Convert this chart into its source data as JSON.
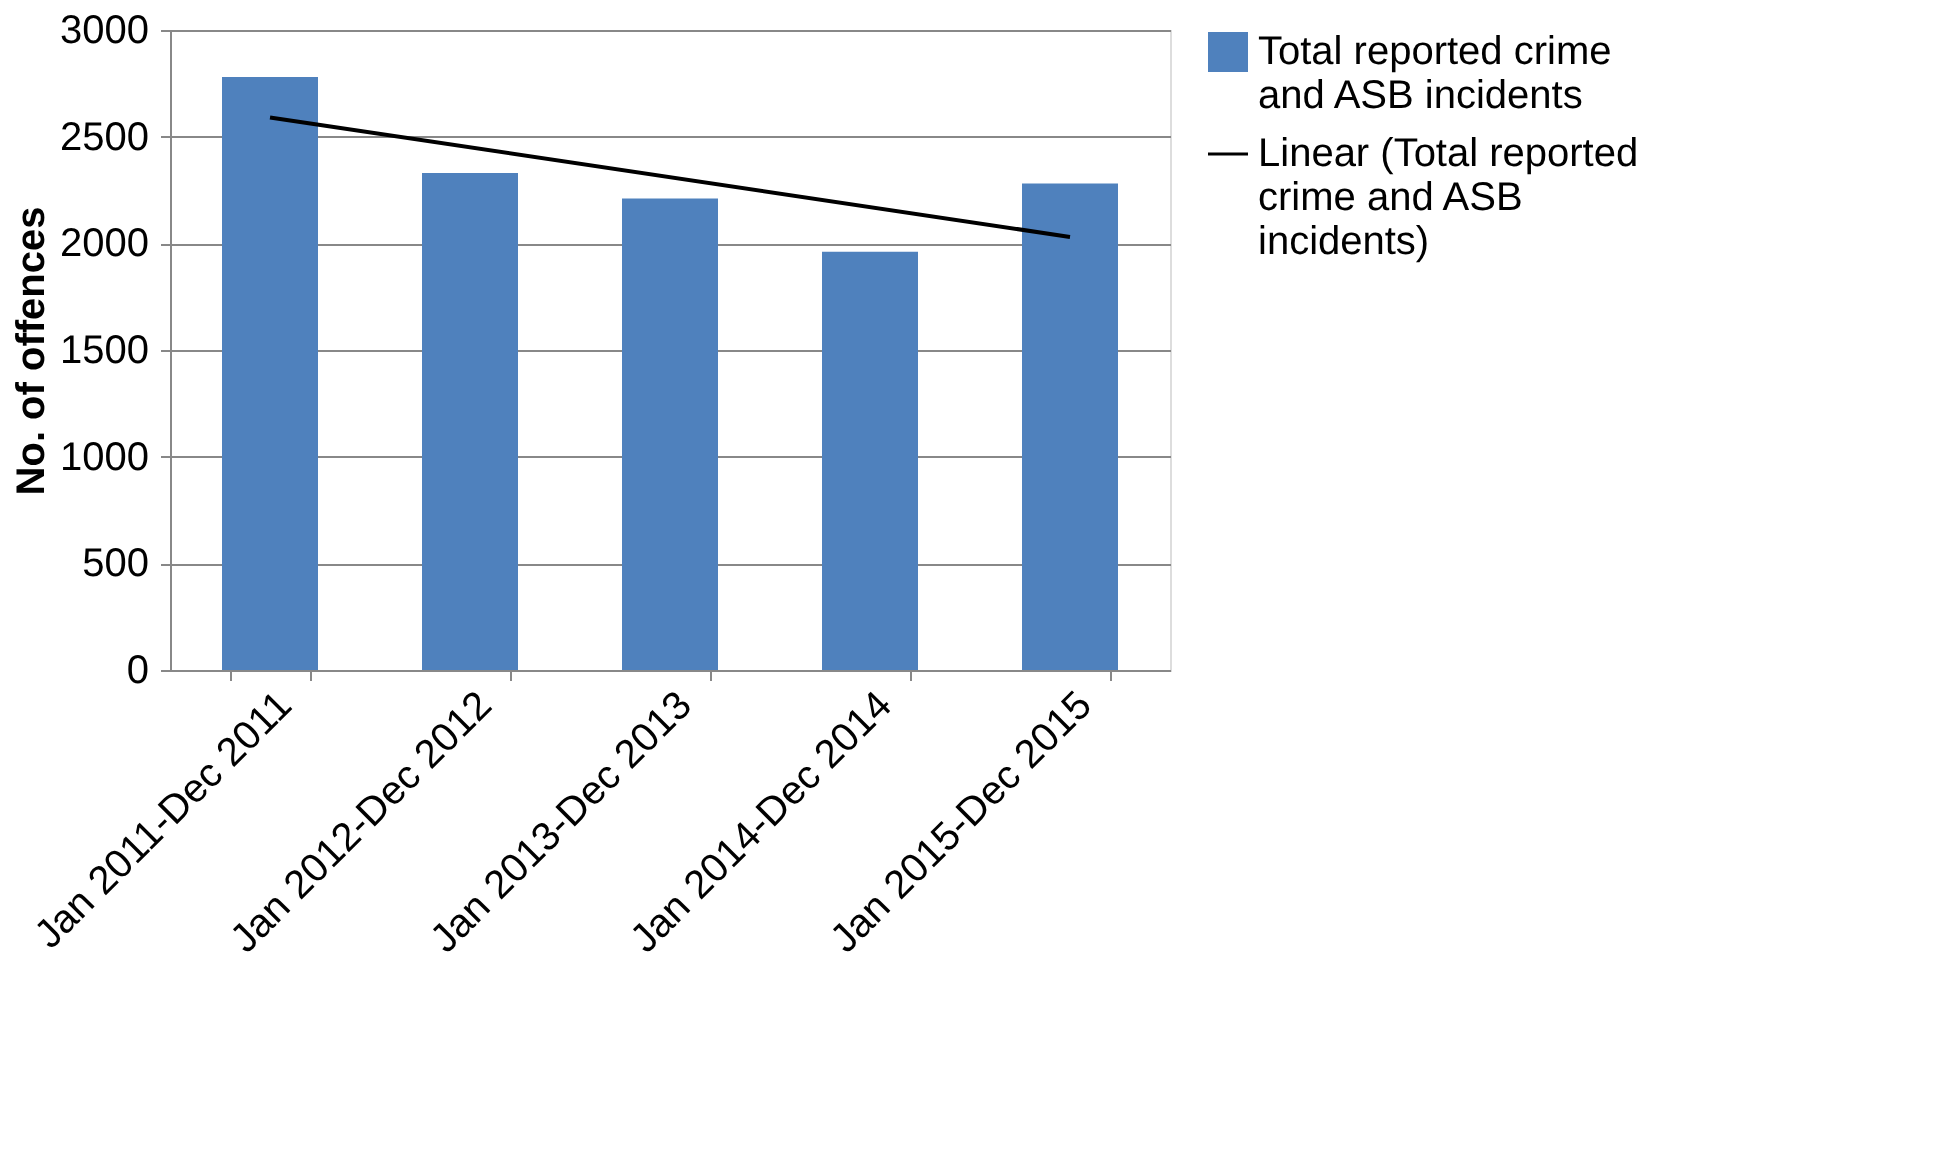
{
  "chart_data": {
    "type": "bar",
    "ylabel": "No. of offences",
    "categories": [
      "Jan 2011-Dec 2011",
      "Jan 2012-Dec 2012",
      "Jan 2013-Dec 2013",
      "Jan 2014-Dec 2014",
      "Jan 2015-Dec 2015"
    ],
    "series": [
      {
        "name": "Total reported crime and ASB incidents",
        "color": "#4f81bd",
        "values": [
          2780,
          2330,
          2210,
          1960,
          2280
        ]
      },
      {
        "name": "Linear (Total reported crime and ASB incidents)",
        "type": "line",
        "color": "#000000",
        "values": [
          2590,
          null,
          null,
          null,
          2030
        ]
      }
    ],
    "ylim": [
      0,
      3000
    ],
    "yticks": [
      0,
      500,
      1000,
      1500,
      2000,
      2500,
      3000
    ],
    "grid": "y",
    "legend": "right"
  }
}
